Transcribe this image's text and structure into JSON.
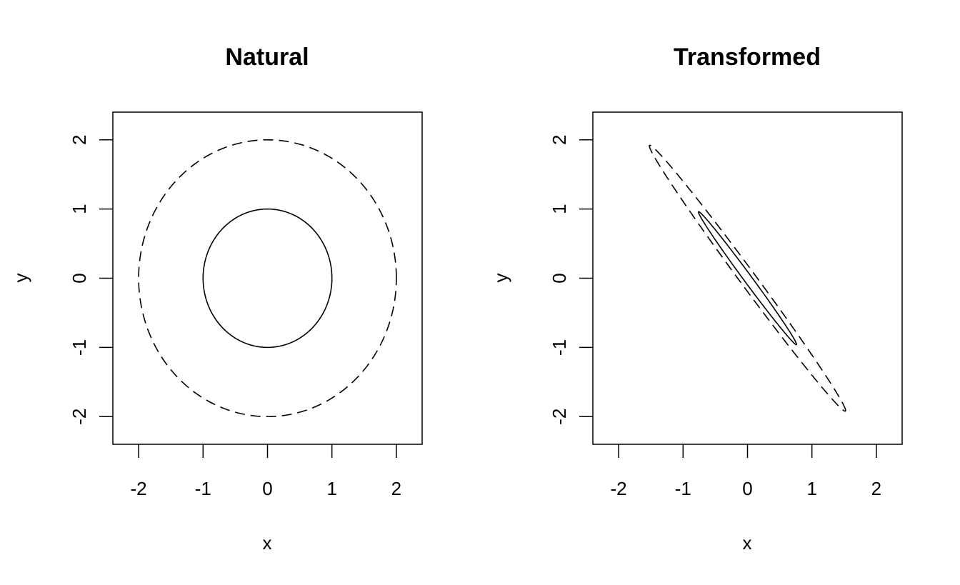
{
  "chart_data": [
    {
      "type": "line",
      "title": "Natural",
      "xlabel": "x",
      "ylabel": "y",
      "xlim": [
        -2.4,
        2.4
      ],
      "ylim": [
        -2.4,
        2.4
      ],
      "xticks": [
        -2,
        -1,
        0,
        1,
        2
      ],
      "yticks": [
        -2,
        -1,
        0,
        1,
        2
      ],
      "xtick_labels": [
        "-2",
        "-1",
        "0",
        "1",
        "2"
      ],
      "ytick_labels": [
        "-2",
        "-1",
        "0",
        "1",
        "2"
      ],
      "grid": false,
      "legend": "none",
      "series": [
        {
          "shape": "circle",
          "cx": 0,
          "cy": 0,
          "radius": 1,
          "line_style": "solid",
          "color": "#000000"
        },
        {
          "shape": "circle",
          "cx": 0,
          "cy": 0,
          "radius": 2,
          "line_style": "dashed",
          "color": "#000000"
        }
      ]
    },
    {
      "type": "line",
      "title": "Transformed",
      "xlabel": "x",
      "ylabel": "y",
      "xlim": [
        -2.4,
        2.4
      ],
      "ylim": [
        -2.4,
        2.4
      ],
      "xticks": [
        -2,
        -1,
        0,
        1,
        2
      ],
      "yticks": [
        -2,
        -1,
        0,
        1,
        2
      ],
      "xtick_labels": [
        "-2",
        "-1",
        "0",
        "1",
        "2"
      ],
      "ytick_labels": [
        "-2",
        "-1",
        "0",
        "1",
        "2"
      ],
      "grid": false,
      "legend": "none",
      "series": [
        {
          "shape": "ellipse",
          "level": 1,
          "major_end": [
            0.76,
            -0.96
          ],
          "minor_half_width": 0.06,
          "line_style": "solid",
          "color": "#000000"
        },
        {
          "shape": "ellipse",
          "level": 2,
          "major_end": [
            1.52,
            -1.92
          ],
          "minor_half_width": 0.12,
          "line_style": "dashed",
          "color": "#000000"
        }
      ]
    }
  ]
}
